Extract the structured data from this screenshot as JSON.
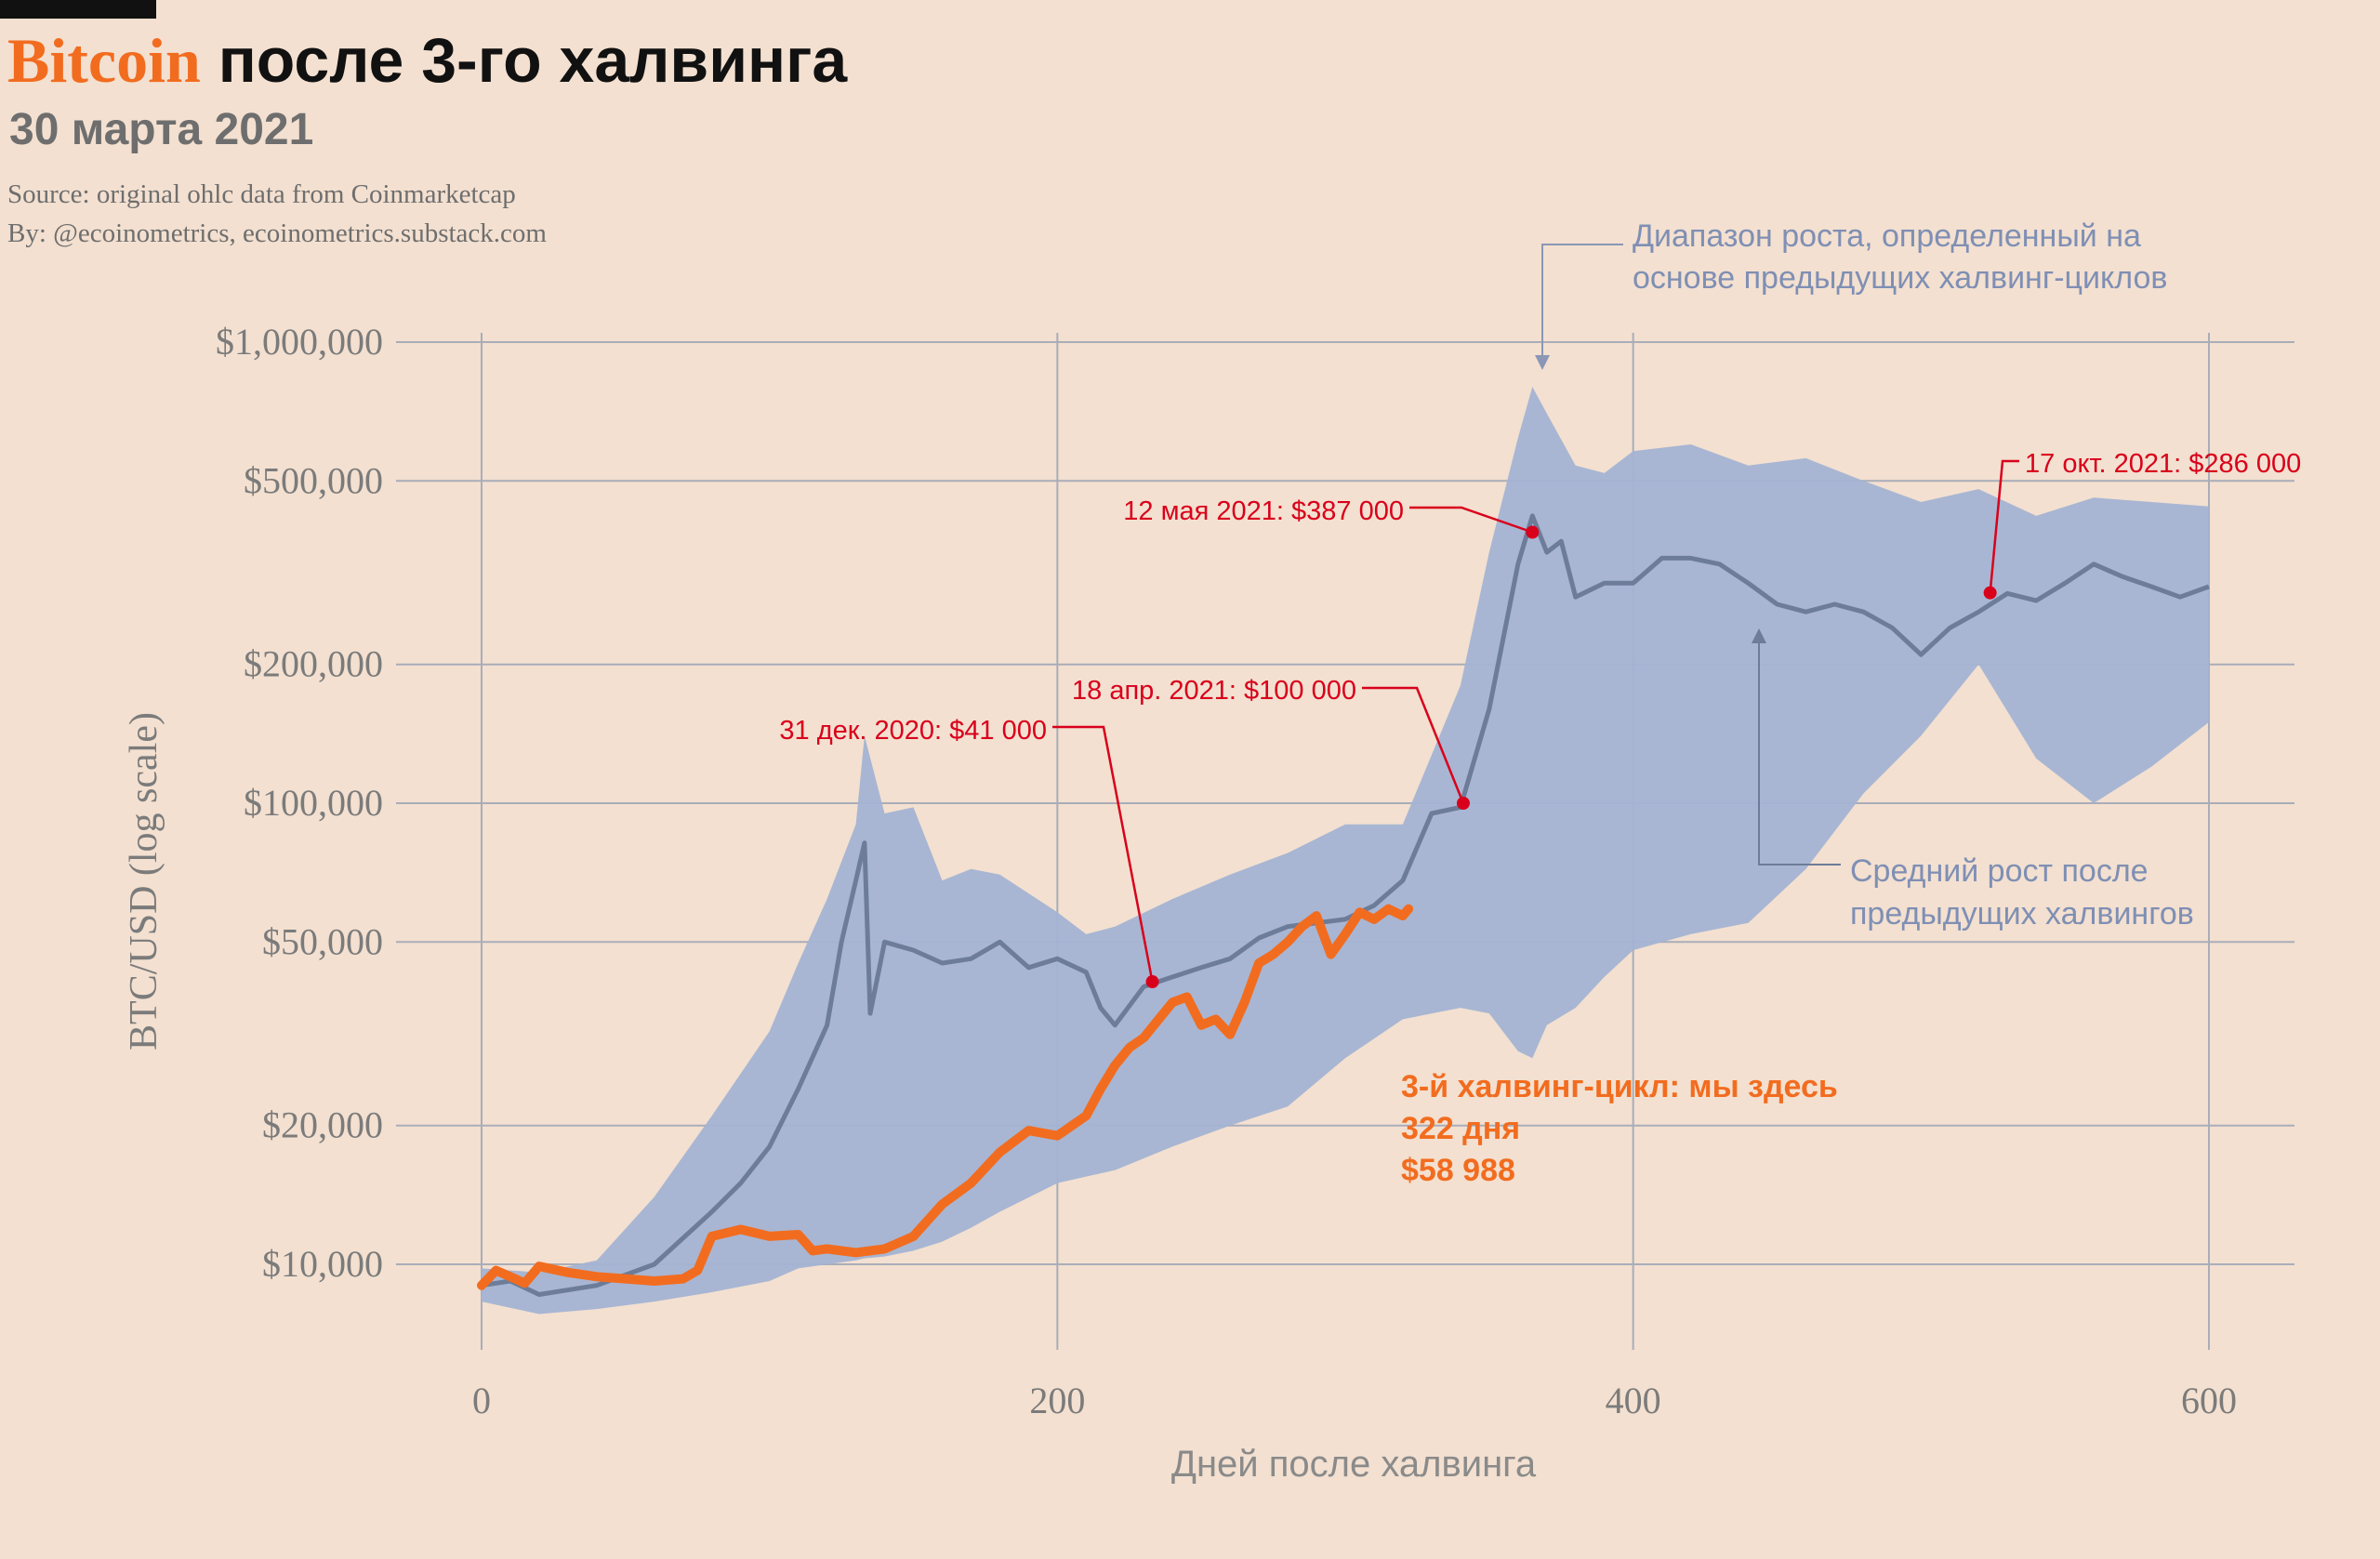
{
  "header": {
    "brand": "Bitcoin",
    "title_rest": " после 3-го халвинга",
    "subtitle": "30 марта 2021",
    "source": "Source: original ohlc data from Coinmarketcap",
    "byline": "By: @ecoinometrics, ecoinometrics.substack.com"
  },
  "colors": {
    "background": "#f3e0d0",
    "brand": "#f26c1f",
    "band": "#a3b3d3",
    "average_line": "#6c7c99",
    "current_line": "#f26c1f",
    "annotation_red": "#d9001b",
    "grid": "#a9adb9"
  },
  "chart_data": {
    "type": "line",
    "xlabel": "Дней после халвинга",
    "ylabel": "BTC/USD (log scale)",
    "yscale": "log",
    "xlim": [
      -15,
      620
    ],
    "ylim": [
      7500,
      1150000
    ],
    "grid": true,
    "x_ticks": [
      {
        "value": 0,
        "label": "0"
      },
      {
        "value": 200,
        "label": "200"
      },
      {
        "value": 400,
        "label": "400"
      },
      {
        "value": 600,
        "label": "600"
      }
    ],
    "y_ticks": [
      {
        "value": 10000,
        "label": "$10,000"
      },
      {
        "value": 20000,
        "label": "$20,000"
      },
      {
        "value": 50000,
        "label": "$50,000"
      },
      {
        "value": 100000,
        "label": "$100,000"
      },
      {
        "value": 200000,
        "label": "$200,000"
      },
      {
        "value": 500000,
        "label": "$500,000"
      },
      {
        "value": 1000000,
        "label": "$1,000,000"
      }
    ],
    "band": {
      "x": [
        0,
        20,
        40,
        60,
        80,
        100,
        110,
        120,
        130,
        133,
        140,
        150,
        160,
        170,
        180,
        200,
        210,
        220,
        240,
        260,
        280,
        300,
        320,
        340,
        350,
        360,
        365,
        370,
        380,
        390,
        400,
        420,
        440,
        460,
        480,
        500,
        520,
        540,
        560,
        580,
        600
      ],
      "high": [
        9800,
        9600,
        10200,
        14000,
        21000,
        32000,
        45000,
        62000,
        90000,
        140000,
        95000,
        98000,
        68000,
        72000,
        70000,
        58000,
        52000,
        54000,
        62000,
        70000,
        78000,
        90000,
        90000,
        180000,
        350000,
        620000,
        800000,
        700000,
        540000,
        520000,
        580000,
        600000,
        540000,
        560000,
        500000,
        450000,
        480000,
        420000,
        460000,
        450000,
        440000
      ],
      "low": [
        8300,
        7800,
        8000,
        8300,
        8700,
        9200,
        9800,
        10000,
        10200,
        10300,
        10400,
        10700,
        11200,
        12000,
        13000,
        15000,
        15500,
        16000,
        18000,
        20000,
        22000,
        28000,
        34000,
        36000,
        35000,
        29000,
        28000,
        33000,
        36000,
        42000,
        48000,
        52000,
        55000,
        72000,
        105000,
        140000,
        200000,
        125000,
        100000,
        120000,
        150000
      ]
    },
    "series": [
      {
        "name": "Средний рост после предыдущих халвингов",
        "x": [
          0,
          10,
          20,
          40,
          60,
          80,
          90,
          100,
          110,
          120,
          125,
          130,
          133,
          135,
          140,
          150,
          160,
          170,
          180,
          190,
          200,
          210,
          215,
          220,
          230,
          240,
          250,
          260,
          270,
          280,
          290,
          300,
          310,
          320,
          330,
          340,
          350,
          360,
          365,
          370,
          375,
          380,
          390,
          400,
          410,
          420,
          430,
          440,
          450,
          460,
          470,
          480,
          490,
          500,
          510,
          520,
          530,
          540,
          550,
          560,
          570,
          580,
          590,
          600
        ],
        "y": [
          9000,
          9200,
          8600,
          9000,
          10000,
          13000,
          15000,
          18000,
          24000,
          33000,
          50000,
          68000,
          82000,
          35000,
          50000,
          48000,
          45000,
          46000,
          50000,
          44000,
          46000,
          43000,
          36000,
          33000,
          40000,
          42000,
          44000,
          46000,
          51000,
          54000,
          55000,
          56000,
          60000,
          68000,
          95000,
          98000,
          160000,
          330000,
          420000,
          350000,
          370000,
          280000,
          300000,
          300000,
          340000,
          340000,
          330000,
          300000,
          270000,
          260000,
          270000,
          260000,
          240000,
          210000,
          240000,
          260000,
          285000,
          275000,
          300000,
          330000,
          310000,
          295000,
          280000,
          295000
        ]
      },
      {
        "name": "3-й халвинг-цикл: мы здесь",
        "x": [
          0,
          5,
          10,
          15,
          20,
          30,
          40,
          50,
          60,
          70,
          75,
          80,
          90,
          100,
          110,
          115,
          120,
          130,
          140,
          150,
          160,
          170,
          180,
          190,
          200,
          210,
          215,
          220,
          225,
          230,
          240,
          245,
          250,
          255,
          260,
          265,
          270,
          275,
          280,
          285,
          290,
          295,
          300,
          305,
          310,
          315,
          320,
          322
        ],
        "y": [
          9000,
          9700,
          9400,
          9100,
          9900,
          9600,
          9400,
          9300,
          9200,
          9300,
          9700,
          11500,
          11900,
          11500,
          11600,
          10700,
          10800,
          10600,
          10800,
          11500,
          13500,
          15000,
          17500,
          19500,
          19000,
          21000,
          24000,
          27000,
          29500,
          31000,
          37000,
          38000,
          33000,
          34000,
          31500,
          37000,
          45000,
          47000,
          50000,
          54000,
          57000,
          47000,
          52000,
          58000,
          56000,
          59000,
          57000,
          58988
        ]
      }
    ],
    "annotations": [
      {
        "label": "31 дек. 2020: $41 000",
        "x": 233,
        "y": 41000
      },
      {
        "label": "18 апр. 2021: $100 000",
        "x": 341,
        "y": 100000
      },
      {
        "label": "12 мая 2021: $387 000",
        "x": 365,
        "y": 387000
      },
      {
        "label": "17 окт. 2021: $286 000",
        "x": 524,
        "y": 286000
      }
    ],
    "notes": {
      "band_label_1": "Диапазон роста, определенный на",
      "band_label_2": "основе предыдущих халвинг-циклов",
      "average_label_1": "Средний рост после",
      "average_label_2": "предыдущих халвингов",
      "current_label_1": "3-й халвинг-цикл: мы здесь",
      "current_label_2": "322 дня",
      "current_label_3": "$58 988"
    }
  }
}
